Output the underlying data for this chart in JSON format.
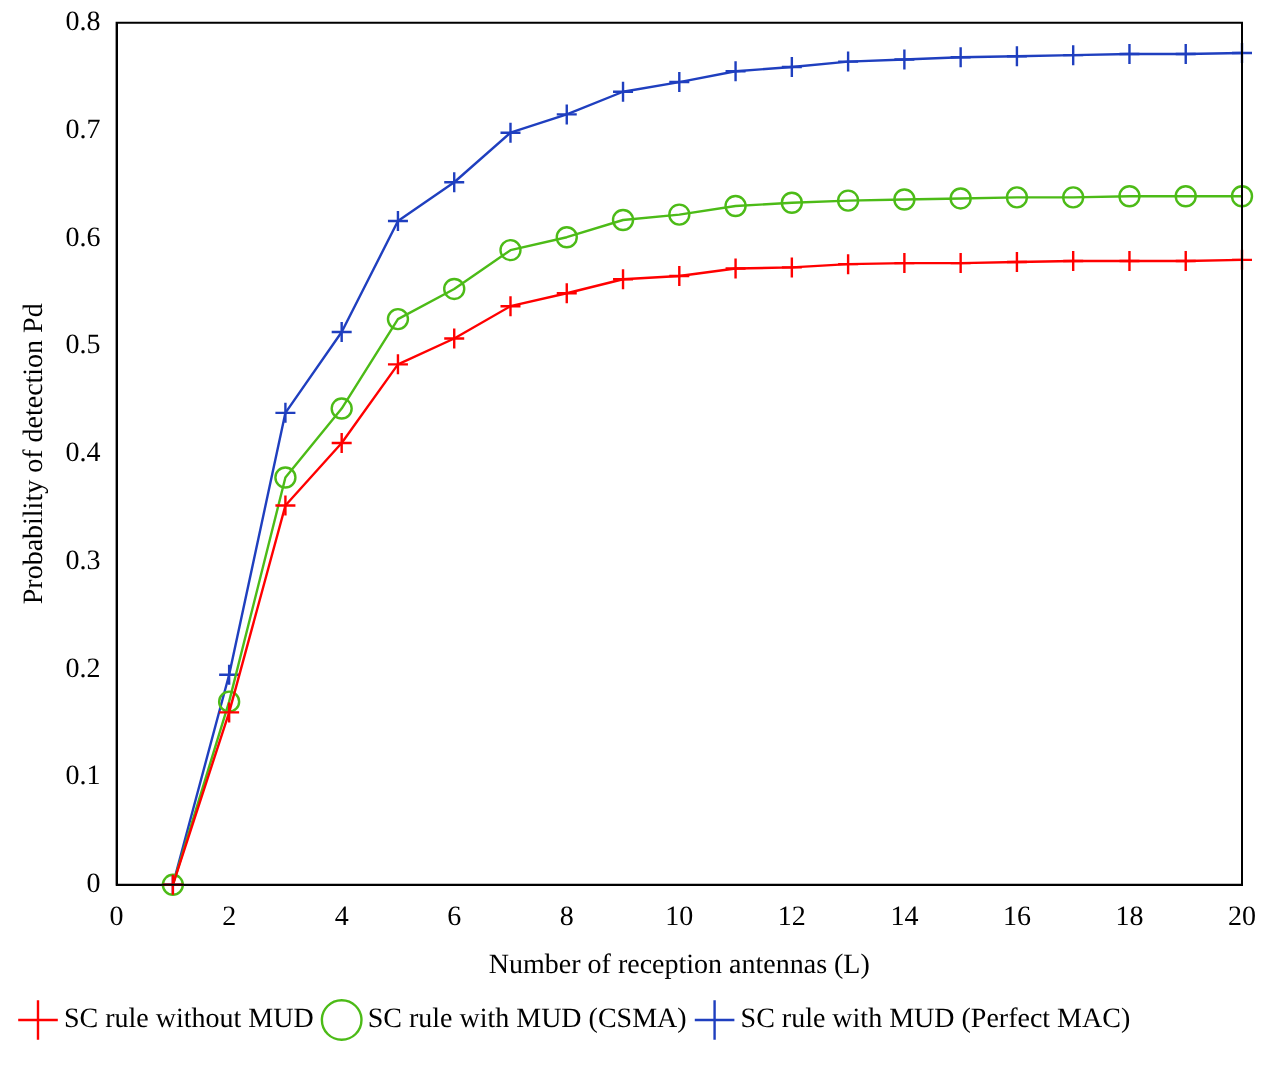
{
  "chart_data": {
    "type": "line",
    "xlabel": "Number of reception antennas (L)",
    "ylabel": "Probability of detection Pd",
    "x": [
      1,
      2,
      3,
      4,
      5,
      6,
      7,
      8,
      9,
      10,
      11,
      12,
      13,
      14,
      15,
      16,
      17,
      18,
      19,
      20
    ],
    "series": [
      {
        "name": "SC rule without MUD",
        "color": "#ff0000",
        "marker": "cross",
        "values": [
          0,
          0.16,
          0.352,
          0.41,
          0.483,
          0.507,
          0.537,
          0.549,
          0.562,
          0.565,
          0.572,
          0.573,
          0.576,
          0.577,
          0.577,
          0.578,
          0.579,
          0.579,
          0.579,
          0.58
        ]
      },
      {
        "name": "SC rule with MUD (CSMA)",
        "color": "#4cbb17",
        "marker": "circle",
        "values": [
          0,
          0.17,
          0.378,
          0.442,
          0.525,
          0.553,
          0.589,
          0.601,
          0.617,
          0.622,
          0.63,
          0.633,
          0.635,
          0.636,
          0.637,
          0.638,
          0.638,
          0.639,
          0.639,
          0.639
        ]
      },
      {
        "name": "SC rule with MUD (Perfect MAC)",
        "color": "#1f3fbf",
        "marker": "cross",
        "values": [
          0,
          0.195,
          0.438,
          0.513,
          0.616,
          0.652,
          0.698,
          0.715,
          0.736,
          0.745,
          0.755,
          0.759,
          0.764,
          0.766,
          0.768,
          0.769,
          0.77,
          0.771,
          0.771,
          0.772
        ]
      }
    ],
    "xlim": [
      0,
      20
    ],
    "xticks": [
      0,
      2,
      4,
      6,
      8,
      10,
      12,
      14,
      16,
      18,
      20
    ],
    "ylim": [
      0,
      0.8
    ],
    "yticks": [
      0,
      0.1,
      0.2,
      0.3,
      0.4,
      0.5,
      0.6,
      0.7,
      0.8
    ],
    "grid": false,
    "legend": "bottom",
    "line_style": "solid"
  }
}
